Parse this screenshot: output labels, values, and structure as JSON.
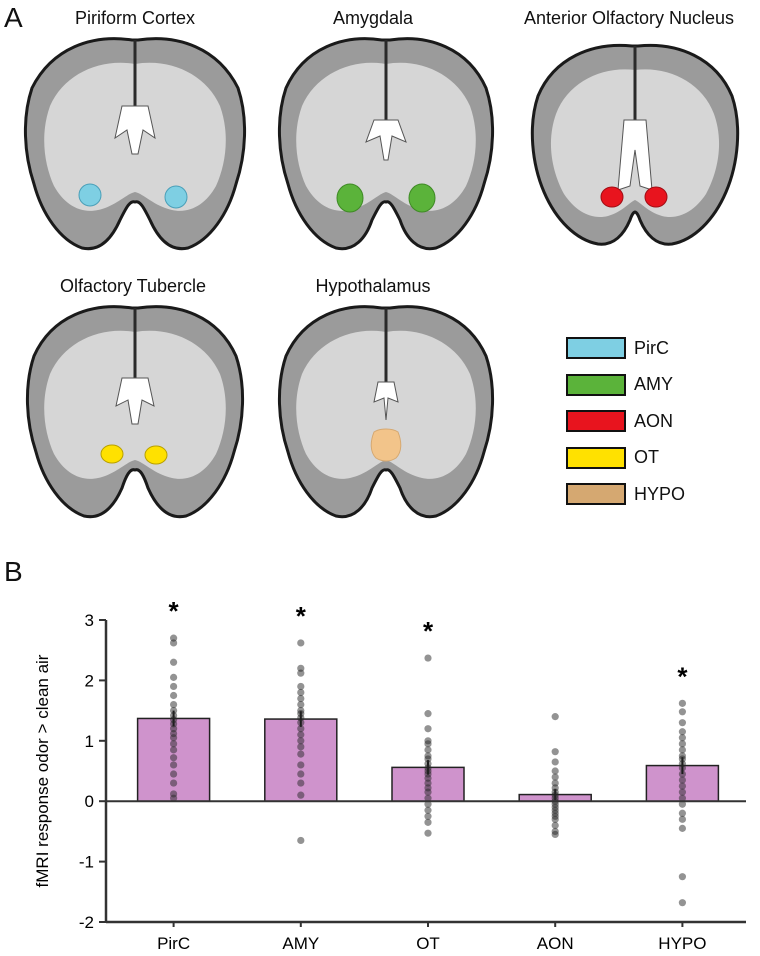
{
  "panel_a": {
    "letter": "A",
    "regions": [
      {
        "title": "Piriform Cortex",
        "abbr": "PirC",
        "color": "#7ecfe3"
      },
      {
        "title": "Amygdala",
        "abbr": "AMY",
        "color": "#5bb33a"
      },
      {
        "title": "Anterior Olfactory Nucleus",
        "abbr": "AON",
        "color": "#e8141e"
      },
      {
        "title": "Olfactory Tubercle",
        "abbr": "OT",
        "color": "#ffe100"
      },
      {
        "title": "Hypothalamus",
        "abbr": "HYPO",
        "color": "#d5a871"
      }
    ]
  },
  "legend": [
    {
      "label": "PirC",
      "color": "#7ecfe3"
    },
    {
      "label": "AMY",
      "color": "#5bb33a"
    },
    {
      "label": "AON",
      "color": "#e8141e"
    },
    {
      "label": "OT",
      "color": "#ffe100"
    },
    {
      "label": "HYPO",
      "color": "#d5a871"
    }
  ],
  "panel_b": {
    "letter": "B"
  },
  "chart_data": {
    "type": "bar",
    "categories": [
      "PirC",
      "AMY",
      "OT",
      "AON",
      "HYPO"
    ],
    "values": [
      1.37,
      1.36,
      0.56,
      0.11,
      0.59
    ],
    "errors": [
      0.13,
      0.13,
      0.12,
      0.09,
      0.14
    ],
    "significant": [
      true,
      true,
      true,
      false,
      true
    ],
    "significance_marker": "*",
    "ylabel": "fMRI response odor > clean air",
    "xlabel": "",
    "ylim": [
      -2,
      3
    ],
    "yticks": [
      -2,
      -1,
      0,
      1,
      2,
      3
    ],
    "bar_color": "#cf93cc",
    "points": [
      [
        2.7,
        2.62,
        2.3,
        2.05,
        1.9,
        1.75,
        1.6,
        1.5,
        1.42,
        1.35,
        1.28,
        1.2,
        1.12,
        1.05,
        0.95,
        0.85,
        0.72,
        0.6,
        0.45,
        0.3,
        0.12,
        0.05
      ],
      [
        2.62,
        2.2,
        2.12,
        1.9,
        1.8,
        1.7,
        1.6,
        1.5,
        1.45,
        1.38,
        1.3,
        1.2,
        1.1,
        1.0,
        0.9,
        0.78,
        0.6,
        0.45,
        0.3,
        0.1,
        -0.65
      ],
      [
        2.37,
        1.45,
        1.2,
        1.0,
        0.95,
        0.85,
        0.75,
        0.7,
        0.62,
        0.55,
        0.5,
        0.45,
        0.38,
        0.3,
        0.22,
        0.15,
        0.05,
        -0.05,
        -0.15,
        -0.25,
        -0.35,
        -0.53
      ],
      [
        1.4,
        0.82,
        0.65,
        0.5,
        0.4,
        0.3,
        0.22,
        0.15,
        0.1,
        0.05,
        0.0,
        -0.05,
        -0.1,
        -0.15,
        -0.2,
        -0.25,
        -0.3,
        -0.4,
        -0.5,
        -0.55
      ],
      [
        1.62,
        1.48,
        1.3,
        1.15,
        1.05,
        0.95,
        0.85,
        0.75,
        0.7,
        0.62,
        0.55,
        0.45,
        0.35,
        0.25,
        0.15,
        0.05,
        -0.05,
        -0.2,
        -0.3,
        -0.45,
        -1.25,
        -1.68
      ]
    ]
  }
}
